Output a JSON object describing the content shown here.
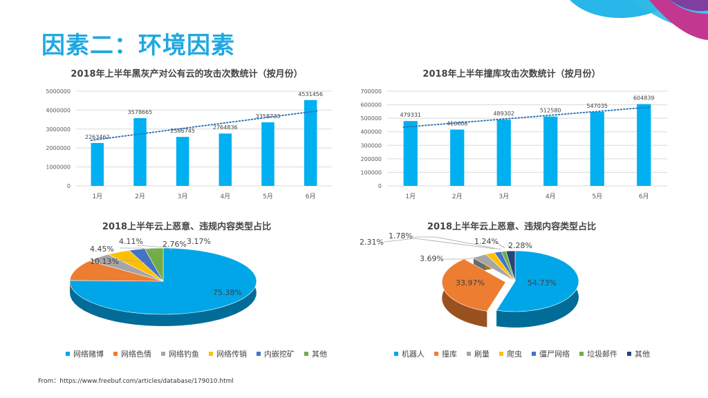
{
  "page": {
    "title": "因素二：环境因素",
    "footer": "From：https://www.freebuf.com/articles/database/179010.html"
  },
  "chart_data": [
    {
      "type": "bar",
      "title": "2018年上半年黑灰产对公有云的攻击次数统计（按月份）",
      "categories": [
        "1月",
        "2月",
        "3月",
        "4月",
        "5月",
        "6月"
      ],
      "values": [
        2263462,
        3578665,
        2586745,
        2764836,
        3358733,
        4531456
      ],
      "ylim": [
        0,
        5000000
      ],
      "yticks": [
        0,
        1000000,
        2000000,
        3000000,
        4000000,
        5000000
      ],
      "trendline": "dotted",
      "color": "#00b0f0"
    },
    {
      "type": "bar",
      "title": "2018年上半年撞库攻击次数统计（按月份）",
      "categories": [
        "1月",
        "2月",
        "3月",
        "4月",
        "5月",
        "6月"
      ],
      "values": [
        479331,
        416606,
        489302,
        512580,
        547035,
        604839
      ],
      "ylim": [
        0,
        700000
      ],
      "yticks": [
        0,
        100000,
        200000,
        300000,
        400000,
        500000,
        600000,
        700000
      ],
      "trendline": "dotted",
      "color": "#00b0f0"
    },
    {
      "type": "pie",
      "title": "2018上半年云上恶意、违规内容类型占比",
      "labels": [
        "网络赌博",
        "网络色情",
        "网络钓鱼",
        "网络传销",
        "内嵌挖矿",
        "其他"
      ],
      "values": [
        75.38,
        10.13,
        4.45,
        4.11,
        2.76,
        3.17
      ],
      "value_labels": [
        "75.38%",
        "10.13%",
        "4.45%",
        "4.11%",
        "2.76%",
        "3.17%"
      ],
      "colors": [
        "#00a6e8",
        "#ed7d31",
        "#a5a5a5",
        "#ffc000",
        "#4472c4",
        "#70ad47"
      ]
    },
    {
      "type": "pie",
      "title": "2018上半年云上恶意、违规内容类型占比",
      "labels": [
        "机器人",
        "撞库",
        "刷量",
        "爬虫",
        "僵尸网络",
        "垃圾邮件",
        "其他"
      ],
      "values": [
        54.73,
        33.97,
        3.69,
        2.31,
        1.78,
        1.24,
        2.28
      ],
      "value_labels": [
        "54.73%",
        "33.97%",
        "3.69%",
        "2.31%",
        "1.78%",
        "1.24%",
        "2.28%"
      ],
      "colors": [
        "#00a6e8",
        "#ed7d31",
        "#a5a5a5",
        "#ffc000",
        "#4472c4",
        "#70ad47",
        "#264478"
      ]
    }
  ]
}
